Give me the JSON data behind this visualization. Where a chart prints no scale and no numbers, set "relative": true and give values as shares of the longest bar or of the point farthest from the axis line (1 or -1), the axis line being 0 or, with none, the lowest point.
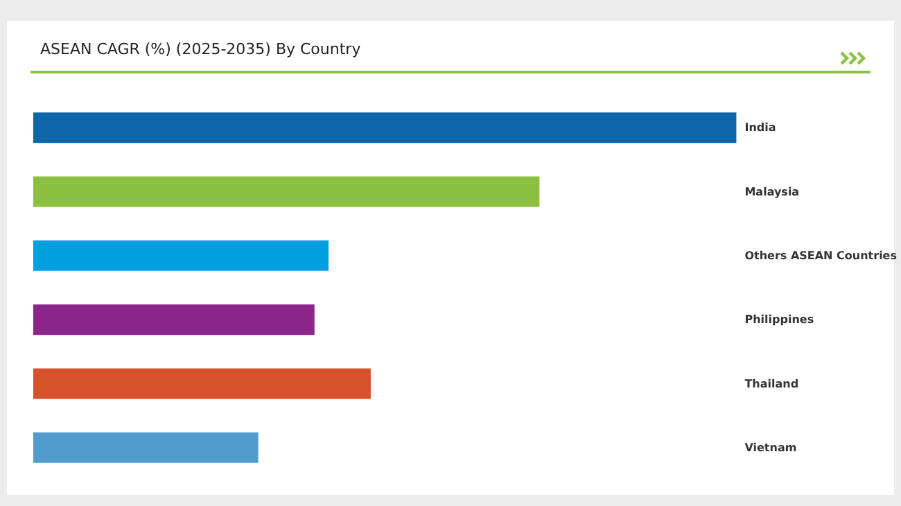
{
  "chart_data": {
    "type": "bar",
    "title": "ASEAN CAGR (%) (2025-2035) By Country",
    "orientation": "horizontal",
    "relative": true,
    "categories": [
      "India",
      "Malaysia",
      "Others ASEAN Countries",
      "Philippines",
      "Thailand",
      "Vietnam"
    ],
    "values": [
      1,
      0.72,
      0.42,
      0.4,
      0.48,
      0.32
    ],
    "colors": [
      "#0e67a8",
      "#8cc041",
      "#00a0e0",
      "#8b2589",
      "#d5522a",
      "#4f9ccd"
    ]
  }
}
